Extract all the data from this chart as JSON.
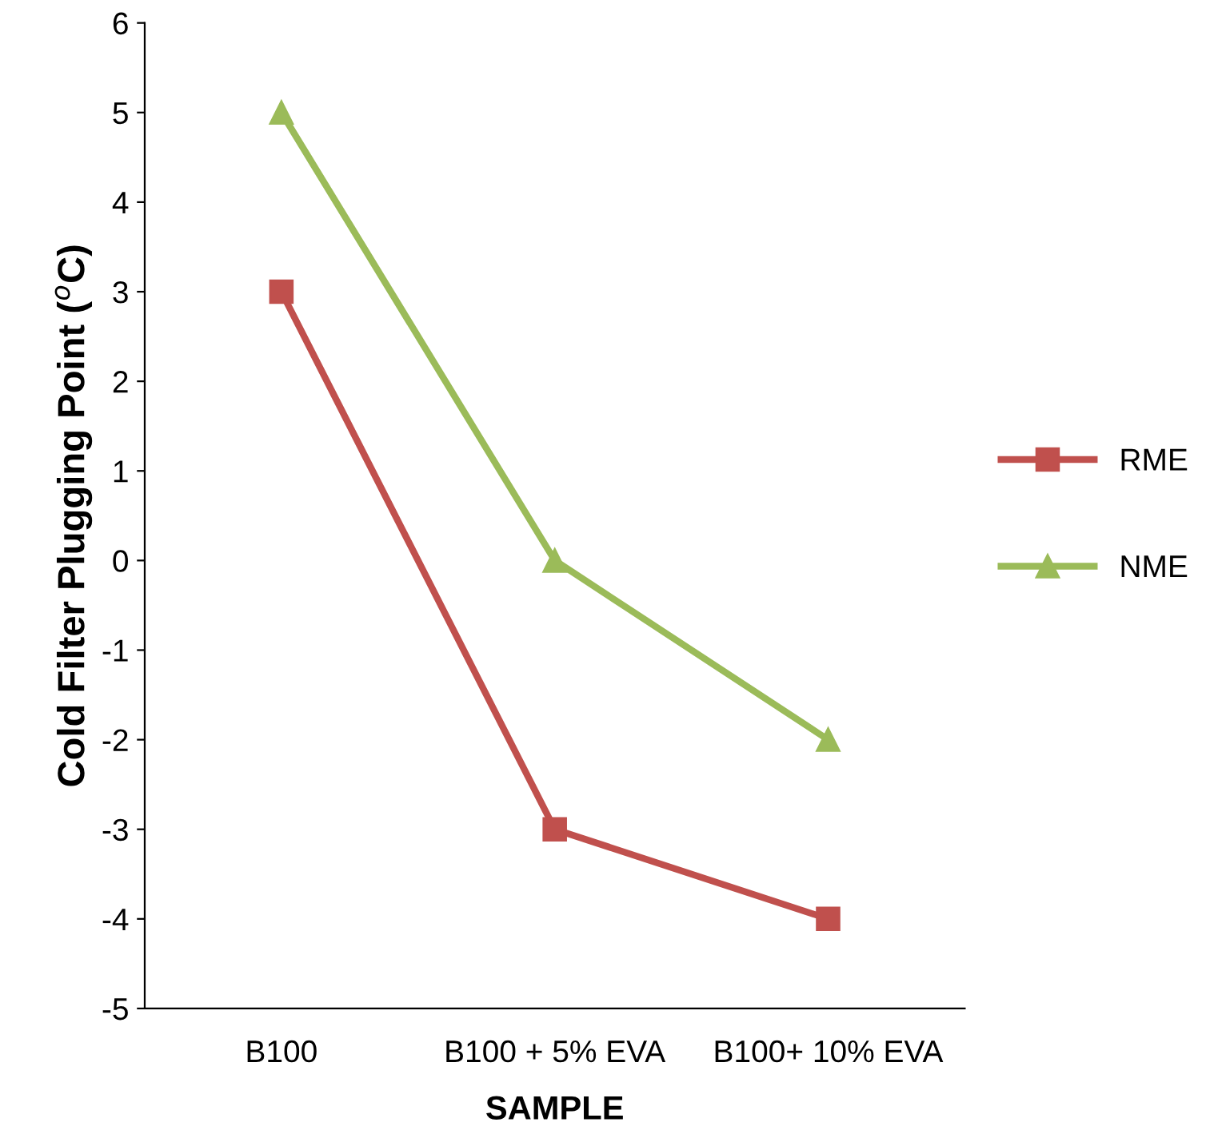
{
  "chart_data": {
    "type": "line",
    "xlabel": "SAMPLE",
    "ylabel": "Cold Filter Plugging Point ($^{o}$C)",
    "categories": [
      "B100",
      "B100 + 5% EVA",
      "B100+ 10% EVA"
    ],
    "series": [
      {
        "name": "RME",
        "color": "#c0504d",
        "marker": "square",
        "values": [
          3,
          -3,
          -4
        ]
      },
      {
        "name": "NME",
        "color": "#9bbb59",
        "marker": "triangle",
        "values": [
          5,
          0,
          -2
        ]
      }
    ],
    "ylim": [
      -5,
      6
    ],
    "yticks": [
      -5,
      -4,
      -3,
      -2,
      -1,
      0,
      1,
      2,
      3,
      4,
      5,
      6
    ],
    "grid": false,
    "legend": "right",
    "line_style": "solid"
  }
}
